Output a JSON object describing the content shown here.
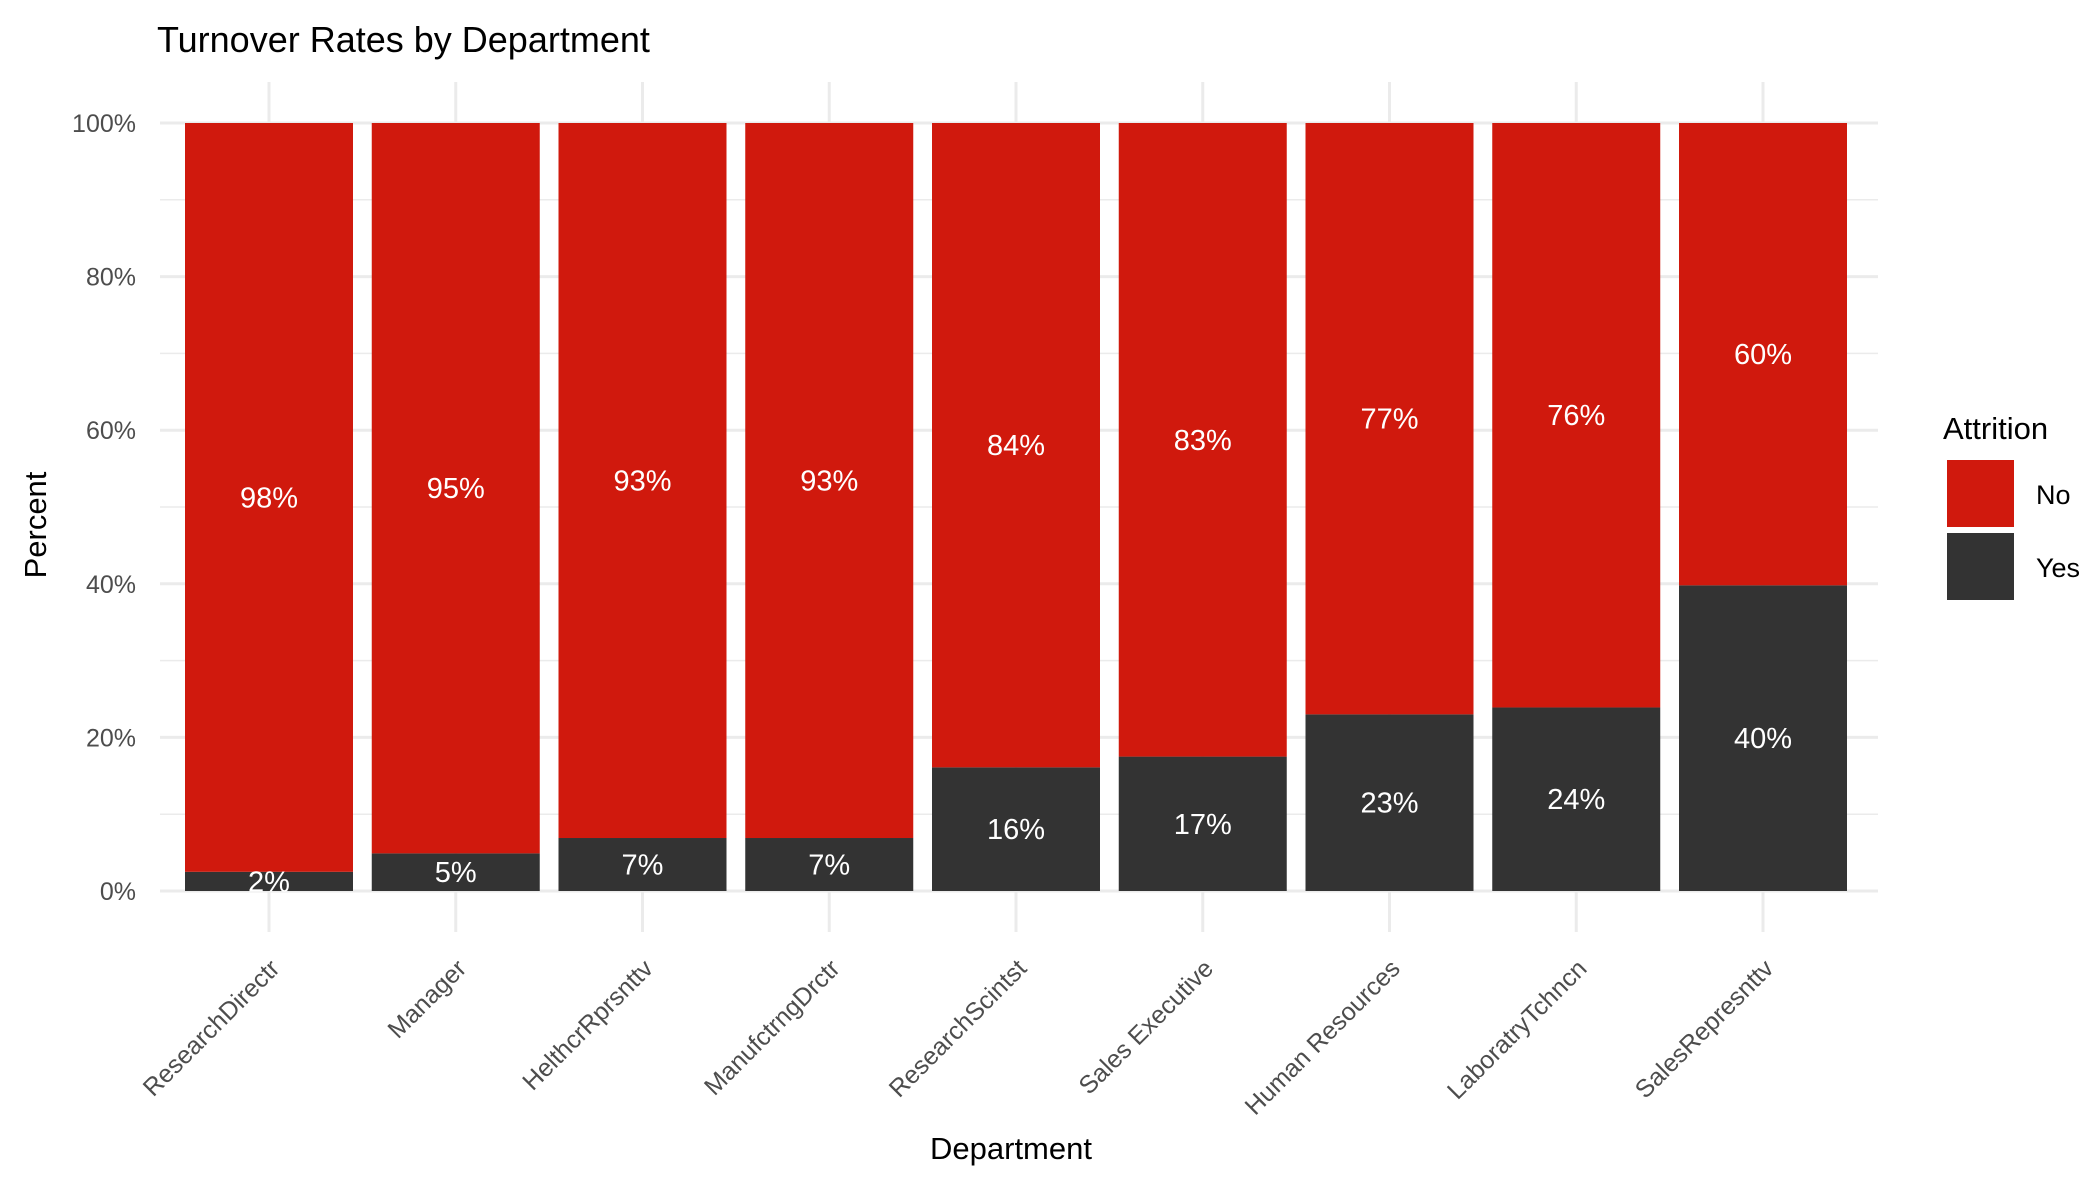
{
  "chart_data": {
    "type": "bar",
    "stacked": true,
    "title": "Turnover Rates by Department",
    "xlabel": "Department",
    "ylabel": "Percent",
    "ylim": [
      0,
      100
    ],
    "y_ticks": [
      "0%",
      "20%",
      "40%",
      "60%",
      "80%",
      "100%"
    ],
    "categories": [
      "ResearchDirectr",
      "Manager",
      "HelthcrRprsnttv",
      "ManufctrngDrctr",
      "ResearchScintst",
      "Sales Executive",
      "Human Resources",
      "LaboratryTchncn",
      "SalesRepresnttv"
    ],
    "series": [
      {
        "name": "No",
        "color": "#d0190d",
        "values": [
          97.5,
          95.1,
          93.1,
          93.1,
          83.9,
          82.5,
          77.0,
          76.1,
          60.2
        ],
        "labels": [
          "98%",
          "95%",
          "93%",
          "93%",
          "84%",
          "83%",
          "77%",
          "76%",
          "60%"
        ]
      },
      {
        "name": "Yes",
        "color": "#333333",
        "values": [
          2.5,
          4.9,
          6.9,
          6.9,
          16.1,
          17.5,
          23.0,
          23.9,
          39.8
        ],
        "labels": [
          "2%",
          "5%",
          "7%",
          "7%",
          "16%",
          "17%",
          "23%",
          "24%",
          "40%"
        ]
      }
    ],
    "legend": {
      "title": "Attrition",
      "placement": "right"
    },
    "grid": true
  }
}
